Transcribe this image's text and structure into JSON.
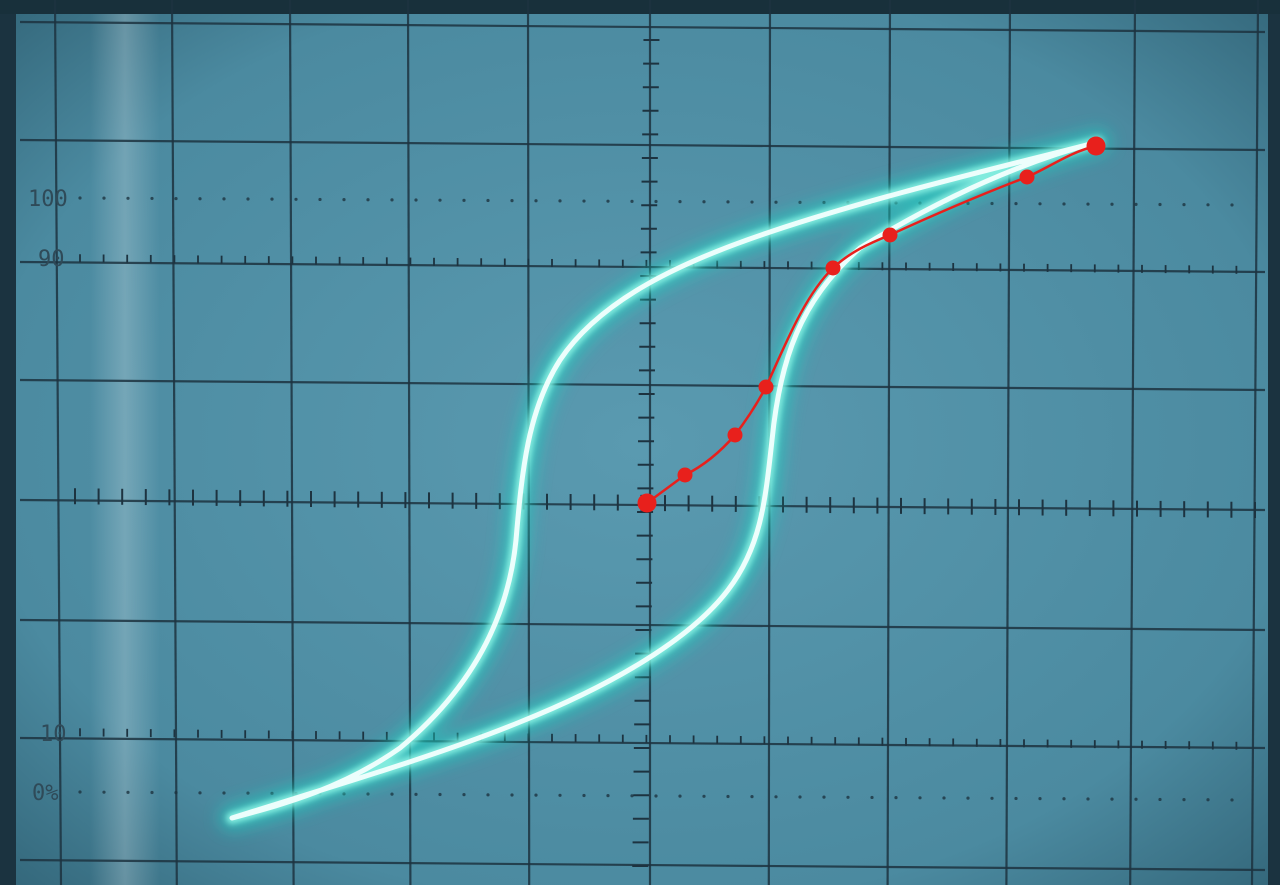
{
  "scope": {
    "labels": [
      "100",
      "90",
      "10",
      "0%"
    ],
    "trace_color": "#8ff5e6",
    "trace_glow": "#1fd6c4",
    "marker_color": "#e8201c",
    "screen_color": "#4e8ea4",
    "grid_color": "#1d3340"
  }
}
